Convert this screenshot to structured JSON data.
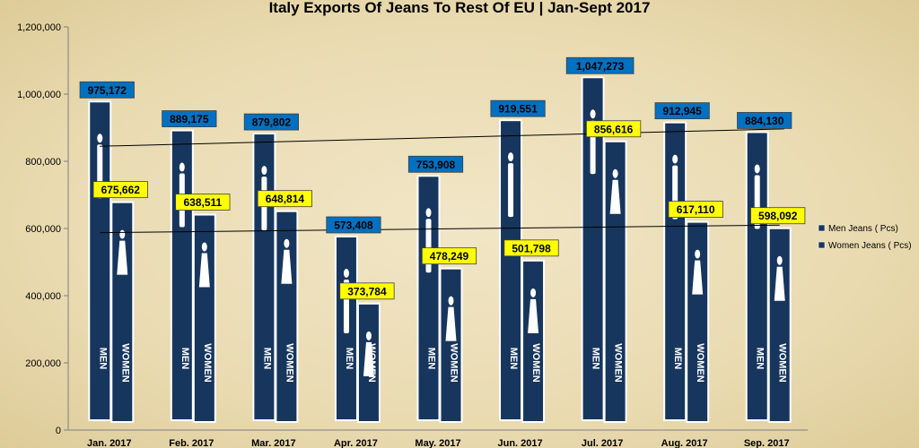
{
  "chart_data": {
    "type": "bar",
    "title": "Italy Exports Of Jeans To Rest Of EU | Jan-Sept 2017",
    "categories": [
      "Jan. 2017",
      "Feb. 2017",
      "Mar. 2017",
      "Apr. 2017",
      "May. 2017",
      "Jun. 2017",
      "Jul. 2017",
      "Aug. 2017",
      "Sep. 2017"
    ],
    "series": [
      {
        "name": "Men Jeans ( Pcs)",
        "values": [
          975172,
          889175,
          879802,
          573408,
          753908,
          919551,
          1047273,
          912945,
          884130
        ],
        "labels": [
          "975,172",
          "889,175",
          "879,802",
          "573,408",
          "753,908",
          "919,551",
          "1,047,273",
          "912,945",
          "884,130"
        ],
        "color": "#17365d",
        "label_bg": "#0070c0",
        "bar_word": "MEN"
      },
      {
        "name": "Women Jeans ( Pcs)",
        "values": [
          675662,
          638511,
          648814,
          373784,
          478249,
          501798,
          856616,
          617110,
          598092
        ],
        "labels": [
          "675,662",
          "638,511",
          "648,814",
          "373,784",
          "478,249",
          "501,798",
          "856,616",
          "617,110",
          "598,092"
        ],
        "color": "#17365d",
        "label_bg": "#ffff00",
        "bar_word": "WOMEN"
      }
    ],
    "yticks": [
      "0",
      "200,000",
      "400,000",
      "600,000",
      "800,000",
      "1,000,000",
      "1,200,000"
    ],
    "ylim": [
      0,
      1200000
    ],
    "trendlines": true,
    "legend_position": "right"
  }
}
